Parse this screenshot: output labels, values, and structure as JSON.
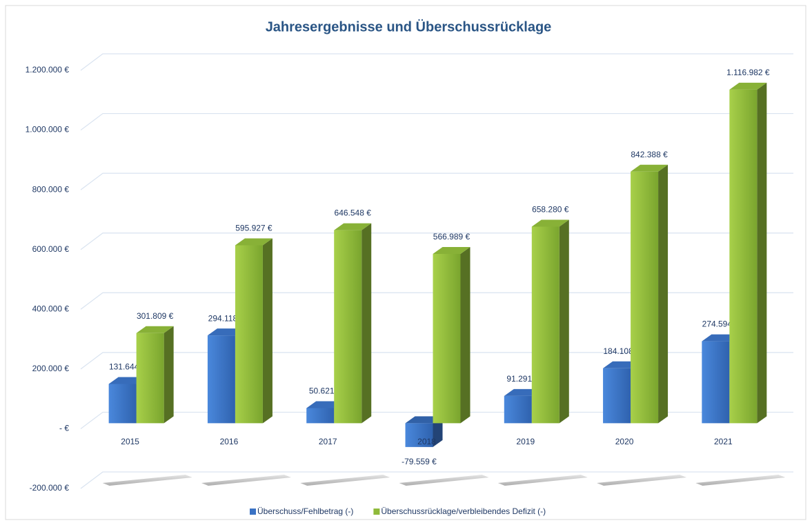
{
  "chart_data": {
    "type": "bar3d",
    "title": "Jahresergebnisse und Überschussrücklage",
    "categories": [
      "2015",
      "2016",
      "2017",
      "2018",
      "2019",
      "2020",
      "2021"
    ],
    "series": [
      {
        "name": "Überschuss/Fehlbetrag (-)",
        "color": "#3a72c4",
        "values": [
          131644,
          294118,
          50621,
          -79559,
          91291,
          184108,
          274594
        ],
        "value_labels": [
          "131.644 €",
          "294.118 €",
          "50.621 €",
          "-79.559 €",
          "91.291 €",
          "184.108 €",
          "274.594 €"
        ]
      },
      {
        "name": "Überschussrücklage/verbleibendes Defizit (-)",
        "color": "#8fba3a",
        "values": [
          301809,
          595927,
          646548,
          566989,
          658280,
          842388,
          1116982
        ],
        "value_labels": [
          "301.809 €",
          "595.927 €",
          "646.548 €",
          "566.989 €",
          "658.280 €",
          "842.388 €",
          "1.116.982 €"
        ]
      }
    ],
    "ylim": [
      -200000,
      1200000
    ],
    "yticks": [
      {
        "value": -200000,
        "label": "-200.000 €"
      },
      {
        "value": 0,
        "label": "-   €"
      },
      {
        "value": 200000,
        "label": "200.000 €"
      },
      {
        "value": 400000,
        "label": "400.000 €"
      },
      {
        "value": 600000,
        "label": "600.000 €"
      },
      {
        "value": 800000,
        "label": "800.000 €"
      },
      {
        "value": 1000000,
        "label": "1.000.000 €"
      },
      {
        "value": 1200000,
        "label": "1.200.000 €"
      }
    ],
    "grid": true,
    "legend": "bottom"
  }
}
